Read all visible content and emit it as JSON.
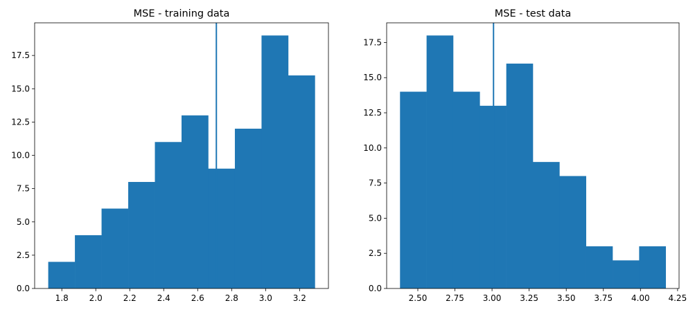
{
  "colors": {
    "bar": "#1f77b4",
    "axis": "#000000",
    "background": "#ffffff"
  },
  "chart_data": [
    {
      "type": "bar",
      "title": "MSE - training data",
      "bins": [
        1.72,
        1.877,
        2.034,
        2.191,
        2.348,
        2.505,
        2.662,
        2.819,
        2.976,
        3.133,
        3.29
      ],
      "counts": [
        2,
        4,
        6,
        8,
        11,
        13,
        9,
        12,
        19,
        16
      ],
      "vline": 2.71,
      "xlim": [
        1.64,
        3.37
      ],
      "ylim": [
        0,
        19.95
      ],
      "xticks": [
        1.8,
        2.0,
        2.2,
        2.4,
        2.6,
        2.8,
        3.0,
        3.2
      ],
      "xtick_labels": [
        "1.8",
        "2.0",
        "2.2",
        "2.4",
        "2.6",
        "2.8",
        "3.0",
        "3.2"
      ],
      "yticks": [
        0,
        2.5,
        5.0,
        7.5,
        10.0,
        12.5,
        15.0,
        17.5
      ],
      "ytick_labels": [
        "0.0",
        "2.5",
        "5.0",
        "7.5",
        "10.0",
        "12.5",
        "15.0",
        "17.5"
      ],
      "grid": false,
      "legend": "none"
    },
    {
      "type": "bar",
      "title": "MSE - test data",
      "bins": [
        2.38,
        2.559,
        2.738,
        2.917,
        3.096,
        3.275,
        3.454,
        3.633,
        3.812,
        3.991,
        4.17
      ],
      "counts": [
        14,
        18,
        14,
        13,
        16,
        9,
        8,
        3,
        2,
        3
      ],
      "vline": 3.01,
      "xlim": [
        2.29,
        4.26
      ],
      "ylim": [
        0,
        18.9
      ],
      "xticks": [
        2.5,
        2.75,
        3.0,
        3.25,
        3.5,
        3.75,
        4.0,
        4.25
      ],
      "xtick_labels": [
        "2.50",
        "2.75",
        "3.00",
        "3.25",
        "3.50",
        "3.75",
        "4.00",
        "4.25"
      ],
      "yticks": [
        0,
        2.5,
        5.0,
        7.5,
        10.0,
        12.5,
        15.0,
        17.5
      ],
      "ytick_labels": [
        "0.0",
        "2.5",
        "5.0",
        "7.5",
        "10.0",
        "12.5",
        "15.0",
        "17.5"
      ],
      "grid": false,
      "legend": "none"
    }
  ]
}
